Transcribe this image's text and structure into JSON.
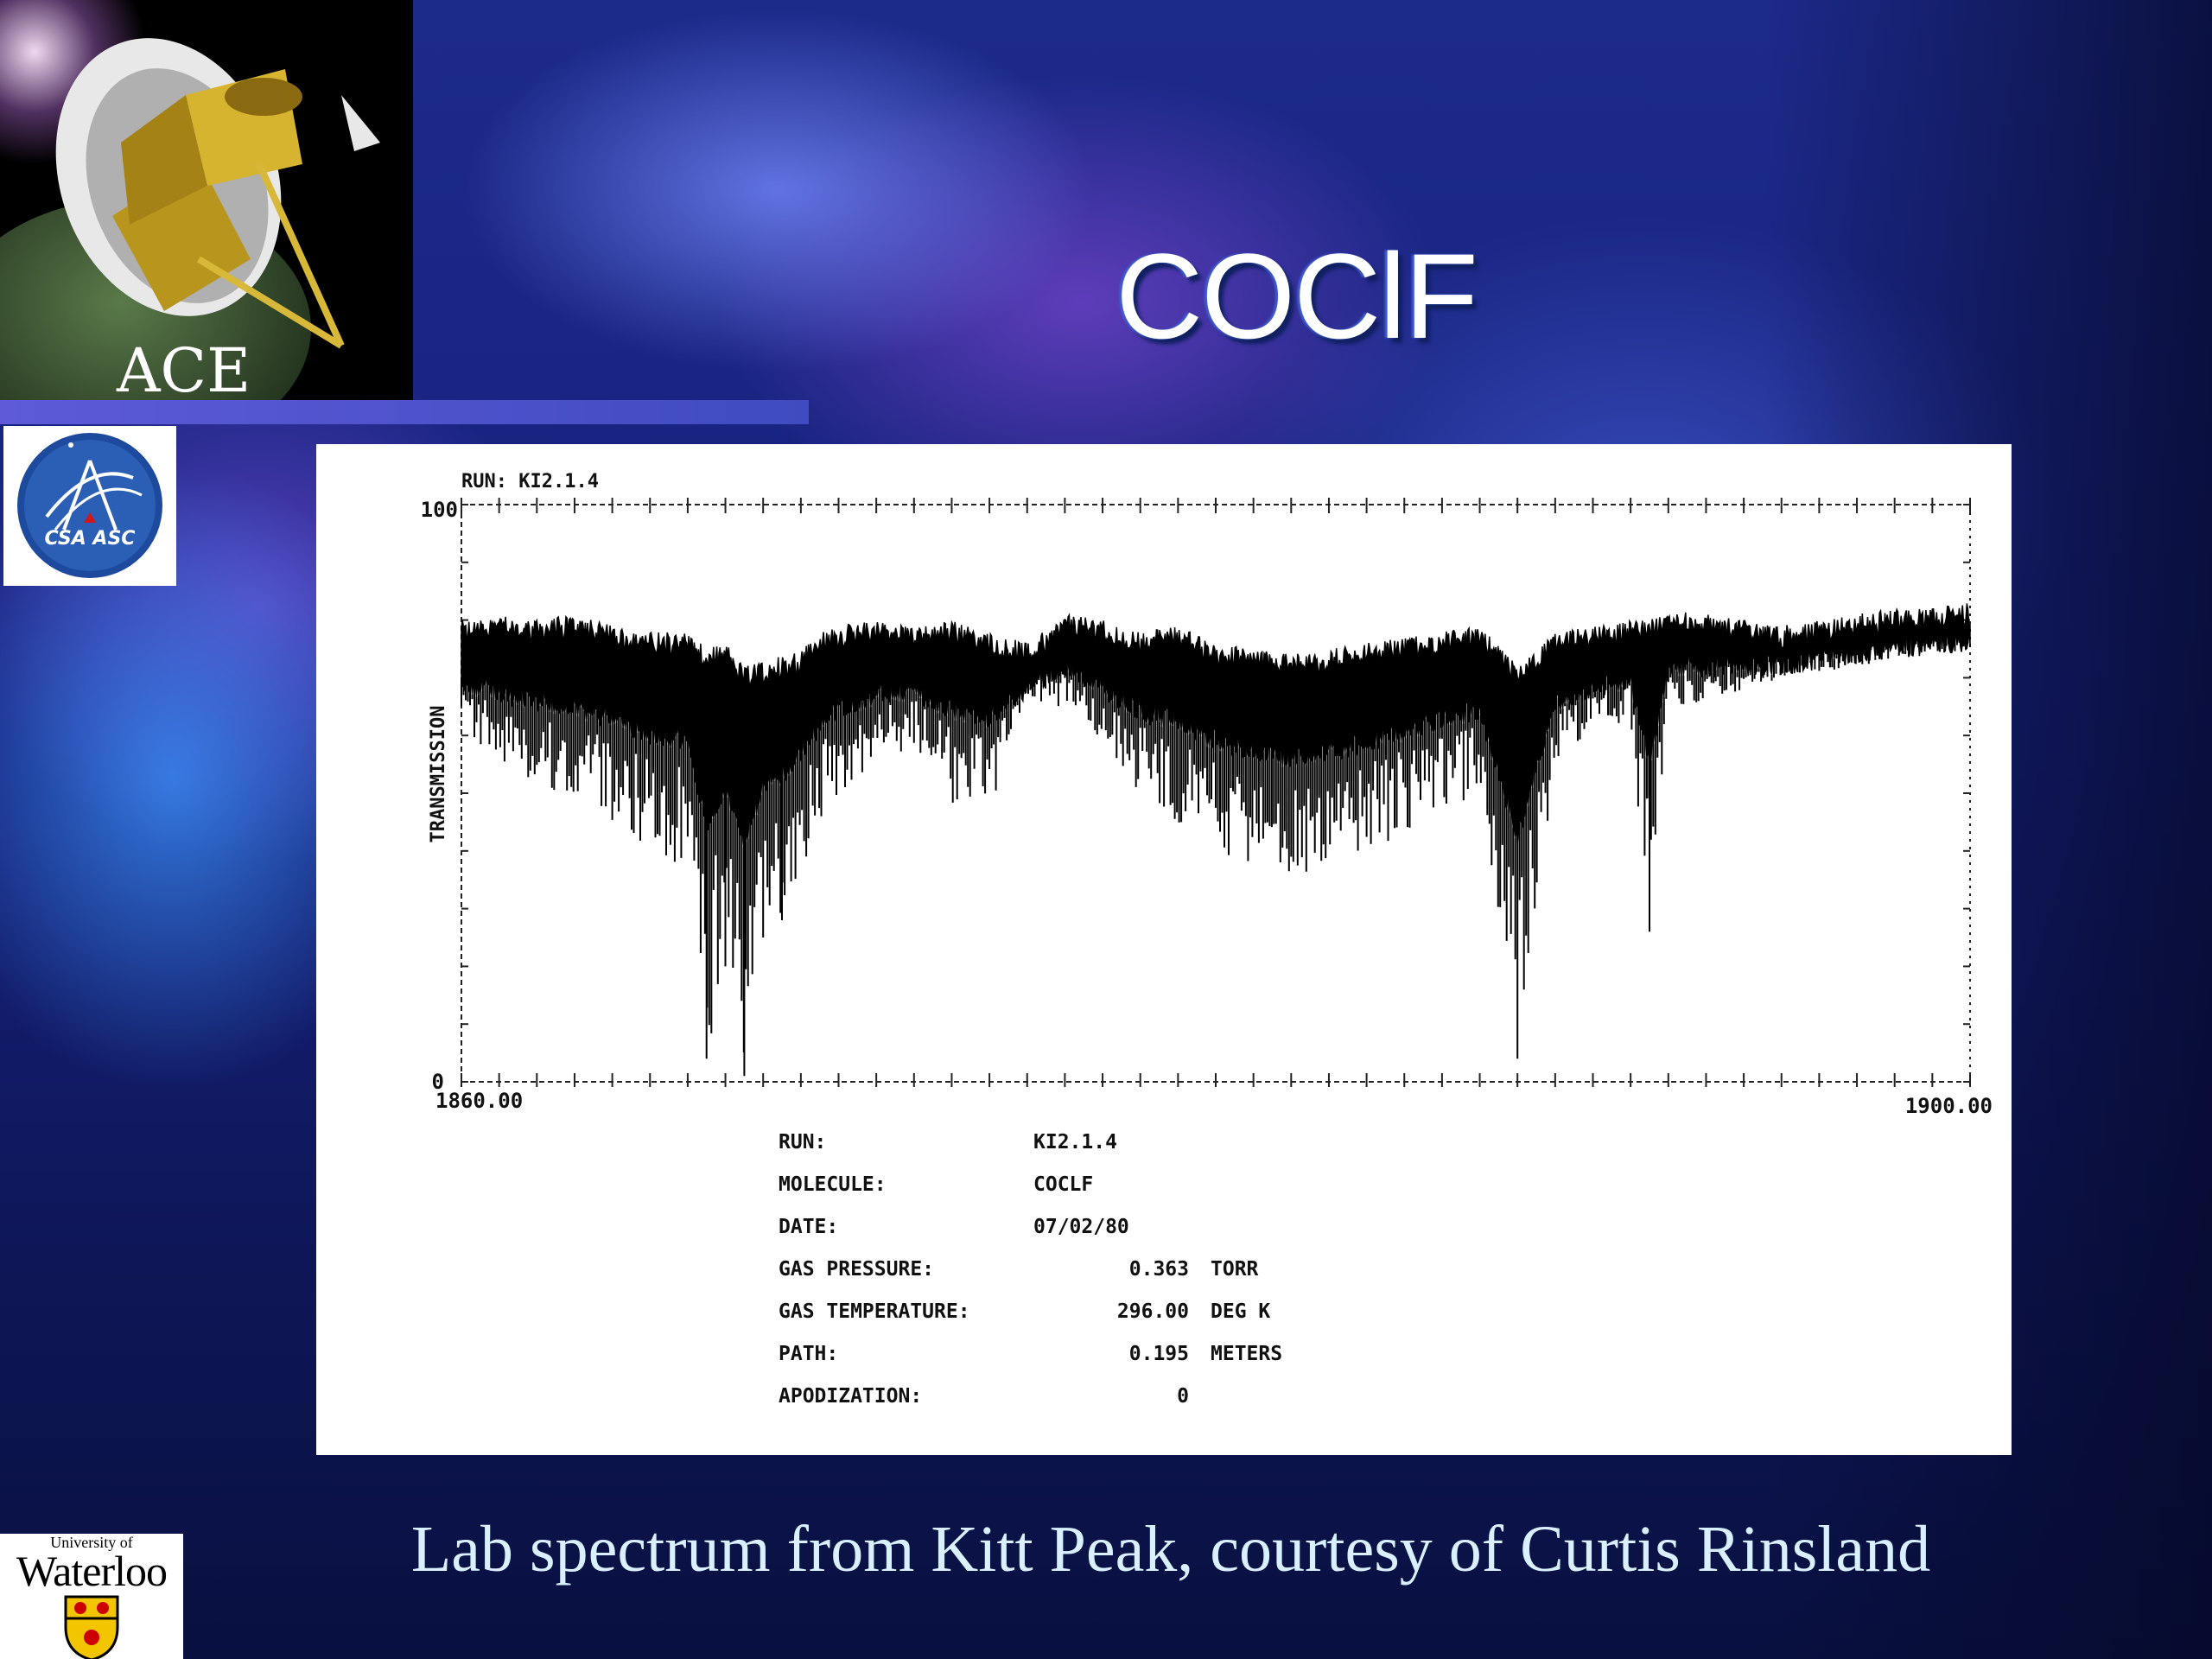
{
  "slide": {
    "title": "COClF",
    "caption": "Lab spectrum from Kitt Peak, courtesy of Curtis Rinsland"
  },
  "logos": {
    "ace_label": "ACE",
    "csa_text": "CSA ASC",
    "uw_small": "University of",
    "uw_name": "Waterloo"
  },
  "colors": {
    "title_text": "#ffffff",
    "caption_text": "#d8f0ff",
    "plot_background": "#ffffff",
    "spectrum_line": "#000000"
  },
  "chart_data": {
    "type": "line",
    "run_header": "RUN: KI2.1.4",
    "ylabel": "TRANSMISSION",
    "xlim": [
      1860.0,
      1900.0
    ],
    "ylim": [
      0,
      100
    ],
    "x_tick_labels": [
      "1860.00",
      "1900.00"
    ],
    "y_tick_labels": [
      "0",
      "100"
    ],
    "grid": false,
    "series": [
      {
        "x": [
          1860.0,
          1861.0,
          1862.0,
          1863.0,
          1864.0,
          1865.0,
          1866.0,
          1866.5,
          1867.0,
          1867.5,
          1868.0,
          1868.5,
          1869.0,
          1869.5,
          1870.0,
          1871.0,
          1872.0,
          1873.0,
          1874.0,
          1875.0,
          1876.0,
          1877.0,
          1878.0,
          1879.0,
          1880.0,
          1881.0,
          1882.0,
          1883.0,
          1884.0,
          1885.0,
          1886.0,
          1887.0,
          1888.0,
          1889.0,
          1890.0,
          1891.0,
          1891.5,
          1892.0,
          1893.0,
          1894.0,
          1895.0,
          1896.0,
          1897.0,
          1898.0,
          1899.0,
          1900.0
        ],
        "upper": [
          78,
          79,
          78,
          79,
          77,
          76,
          76,
          73,
          74,
          70,
          71,
          72,
          73,
          76,
          77,
          78,
          77,
          78,
          76,
          74,
          79,
          78,
          76,
          77,
          74,
          73,
          72,
          73,
          74,
          75,
          76,
          77,
          70,
          76,
          77,
          78,
          78,
          80,
          79,
          78,
          77,
          78,
          79,
          80,
          80,
          81
        ],
        "lower": [
          60,
          55,
          52,
          48,
          45,
          40,
          37,
          4,
          20,
          1,
          25,
          28,
          35,
          45,
          50,
          55,
          58,
          48,
          47,
          65,
          65,
          58,
          50,
          45,
          40,
          37,
          36,
          37,
          40,
          43,
          47,
          50,
          4,
          55,
          60,
          62,
          26,
          65,
          66,
          68,
          70,
          71,
          72,
          73,
          74,
          75
        ]
      }
    ],
    "info": [
      {
        "label": "RUN:",
        "value": "KI2.1.4",
        "unit": ""
      },
      {
        "label": "MOLECULE:",
        "value": "COCLF",
        "unit": ""
      },
      {
        "label": "DATE:",
        "value": "07/02/80",
        "unit": ""
      },
      {
        "label": "GAS PRESSURE:",
        "value": "0.363",
        "unit": "TORR"
      },
      {
        "label": "GAS TEMPERATURE:",
        "value": "296.00",
        "unit": "DEG K"
      },
      {
        "label": "PATH:",
        "value": "0.195",
        "unit": "METERS"
      },
      {
        "label": "APODIZATION:",
        "value": "0",
        "unit": ""
      }
    ]
  }
}
